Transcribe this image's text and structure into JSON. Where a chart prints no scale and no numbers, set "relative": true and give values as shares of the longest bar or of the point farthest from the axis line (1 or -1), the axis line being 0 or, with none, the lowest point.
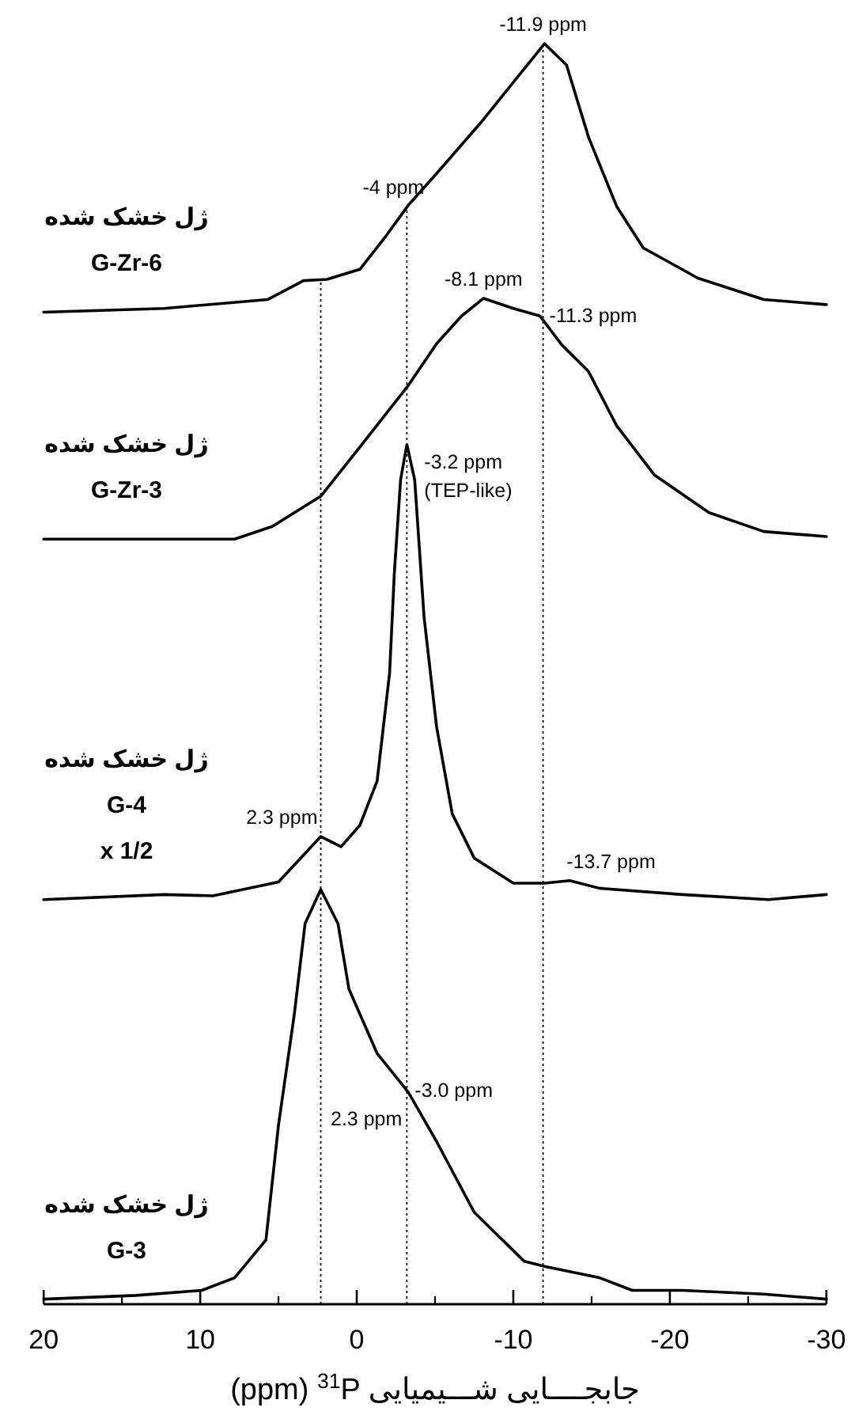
{
  "chart_data": {
    "type": "line",
    "relative": true,
    "tick_labels": "x",
    "xlabel": "(ppm) $^{31}$P جابجــــایی شـــیمیایی",
    "xlim": [
      20,
      -30
    ],
    "xticks": [
      20,
      10,
      0,
      -10,
      -20,
      -30
    ],
    "series": [
      {
        "name": "ژل خشک شده\nG-Zr-6",
        "color": "#000000",
        "x": [
          20,
          12.3,
          5.7,
          3.4,
          1.9,
          -0.2,
          -1.9,
          -3.3,
          -5.1,
          -7.9,
          -10.3,
          -12.0,
          -13.4,
          -14.8,
          -16.6,
          -18.3,
          -21.8,
          -26.0,
          -30
        ],
        "values": [
          0.787,
          0.79,
          0.797,
          0.812,
          0.813,
          0.821,
          0.848,
          0.872,
          0.897,
          0.937,
          0.974,
          1.0,
          0.983,
          0.926,
          0.871,
          0.838,
          0.814,
          0.797,
          0.793
        ]
      },
      {
        "name": "ژل خشک شده\nG-Zr-3",
        "color": "#000000",
        "x": [
          20,
          7.8,
          5.4,
          2.3,
          -0.2,
          -3.3,
          -5.1,
          -6.7,
          -8.1,
          -10.0,
          -11.7,
          -13.1,
          -14.8,
          -16.6,
          -19.0,
          -22.5,
          -26.0,
          -30
        ],
        "values": [
          0.607,
          0.607,
          0.617,
          0.641,
          0.68,
          0.729,
          0.762,
          0.784,
          0.798,
          0.79,
          0.784,
          0.761,
          0.74,
          0.697,
          0.658,
          0.628,
          0.613,
          0.609
        ]
      },
      {
        "name": "ژل خشک شده\nG-4\nx 1/2",
        "color": "#000000",
        "x": [
          20,
          12.3,
          9.2,
          5.0,
          2.3,
          1.0,
          -0.2,
          -1.3,
          -2.1,
          -2.4,
          -2.8,
          -3.2,
          -3.7,
          -4.3,
          -5.1,
          -6.1,
          -7.5,
          -10.0,
          -12.0,
          -13.6,
          -15.5,
          -20.8,
          -26.3,
          -30
        ],
        "values": [
          0.321,
          0.325,
          0.324,
          0.335,
          0.371,
          0.363,
          0.38,
          0.415,
          0.501,
          0.58,
          0.654,
          0.682,
          0.654,
          0.545,
          0.458,
          0.389,
          0.354,
          0.334,
          0.334,
          0.336,
          0.33,
          0.325,
          0.321,
          0.325
        ]
      },
      {
        "name": "ژل خشک شده\nG-3",
        "color": "#000000",
        "x": [
          20,
          14.1,
          9.9,
          7.8,
          6.4,
          5.8,
          5.0,
          4.0,
          3.3,
          2.3,
          1.2,
          0.5,
          -1.3,
          -3.3,
          -5.1,
          -7.5,
          -10.7,
          -12.0,
          -15.5,
          -17.6,
          -20.8,
          -26.0,
          -30
        ],
        "values": [
          0.004,
          0.007,
          0.011,
          0.021,
          0.042,
          0.051,
          0.142,
          0.229,
          0.302,
          0.329,
          0.302,
          0.25,
          0.199,
          0.168,
          0.129,
          0.073,
          0.034,
          0.03,
          0.021,
          0.011,
          0.011,
          0.008,
          0.004
        ]
      }
    ],
    "ref_lines": [
      {
        "axis": "x",
        "value": 2.3,
        "color": "#000000",
        "line_style": "dotted"
      },
      {
        "axis": "x",
        "value": -3.2,
        "color": "#000000",
        "line_style": "dotted"
      },
      {
        "axis": "x",
        "value": -11.9,
        "color": "#000000",
        "line_style": "dotted"
      }
    ],
    "annotations": [
      {
        "text": "-11.9 ppm",
        "x": -11.9,
        "y": 1.0
      },
      {
        "text": "-4 ppm",
        "x": -3.3,
        "y": 0.872
      },
      {
        "text": "-8.1 ppm",
        "x": -8.1,
        "y": 0.798
      },
      {
        "text": "-11.3 ppm",
        "x": -11.7,
        "y": 0.784
      },
      {
        "text": "-3.2 ppm\n(TEP-like)",
        "x": -3.2,
        "y": 0.682
      },
      {
        "text": "2.3 ppm",
        "x": 2.3,
        "y": 0.371
      },
      {
        "text": "-13.7 ppm",
        "x": -13.6,
        "y": 0.336
      },
      {
        "text": "-3.0 ppm",
        "x": -3.3,
        "y": 0.168
      },
      {
        "text": "2.3 ppm",
        "x": -3.3,
        "y": 0.168
      }
    ]
  }
}
